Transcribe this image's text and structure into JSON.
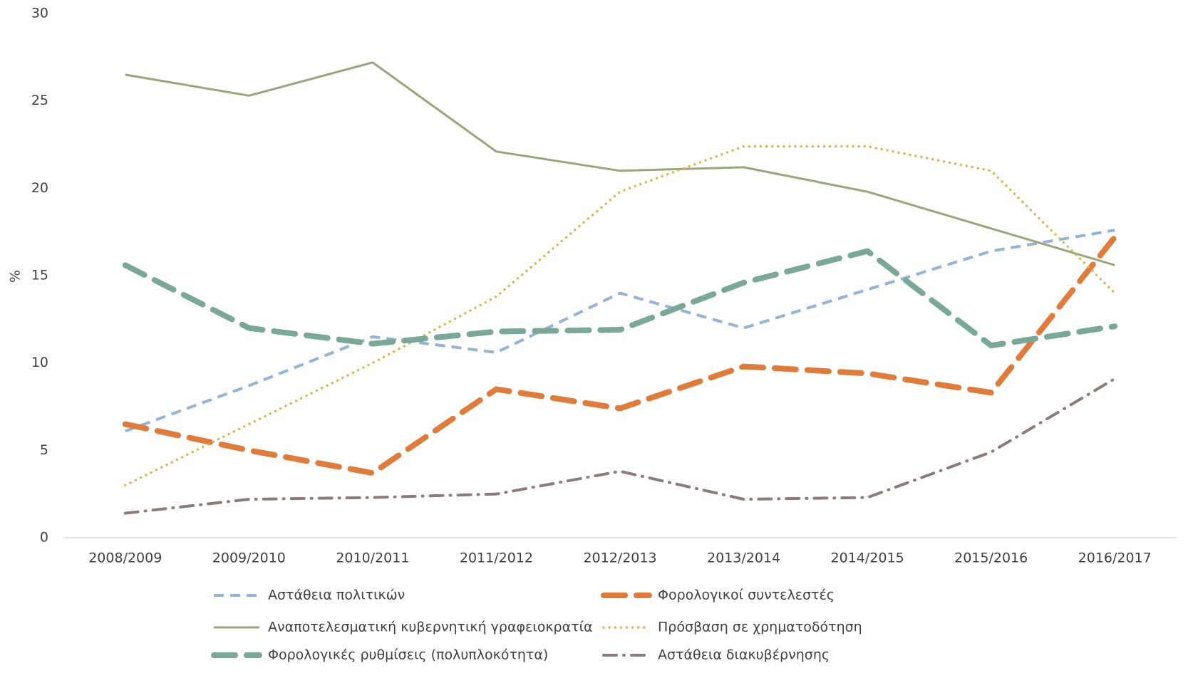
{
  "chart_data": {
    "type": "line",
    "y_label": "%",
    "categories": [
      "2008/2009",
      "2009/2010",
      "2010/2011",
      "2011/2012",
      "2012/2013",
      "2013/2014",
      "2014/2015",
      "2015/2016",
      "2016/2017"
    ],
    "ylim": [
      0,
      30
    ],
    "yticks": [
      0,
      5,
      10,
      15,
      20,
      25,
      30
    ],
    "grid": false,
    "legend": "bottom",
    "series": [
      {
        "name": "Αστάθεια πολιτικών",
        "color": "#95b3d7",
        "line_style": "dashed",
        "values": [
          6.1,
          8.7,
          11.5,
          10.6,
          14.0,
          12.0,
          14.2,
          16.4,
          17.6
        ]
      },
      {
        "name": "Φορολογικοί συντελεστές",
        "color": "#e07b39",
        "line_style": "thick-dashed",
        "values": [
          6.5,
          5.0,
          3.7,
          8.5,
          7.4,
          9.8,
          9.4,
          8.3,
          17.2
        ]
      },
      {
        "name": "Αναποτελεσματική κυβερνητική γραφειοκρατία",
        "color": "#9aa57a",
        "line_style": "solid",
        "values": [
          26.5,
          25.3,
          27.2,
          22.1,
          21.0,
          21.2,
          19.8,
          17.7,
          15.6
        ]
      },
      {
        "name": "Πρόσβαση σε χρηματοδότηση",
        "color": "#d8b65a",
        "line_style": "dotted",
        "values": [
          3.0,
          6.5,
          10.0,
          13.8,
          19.8,
          22.4,
          22.4,
          21.0,
          14.0
        ]
      },
      {
        "name": "Φορολογικές ρυθμίσεις (πολυπλοκότητα)",
        "color": "#7aa898",
        "line_style": "thick-dashed",
        "values": [
          15.6,
          12.0,
          11.1,
          11.8,
          11.9,
          14.6,
          16.4,
          11.0,
          12.1
        ]
      },
      {
        "name": "Αστάθεια διακυβέρνησης",
        "color": "#8c7b7b",
        "line_style": "dash-dot",
        "values": [
          1.4,
          2.2,
          2.3,
          2.5,
          3.8,
          2.2,
          2.3,
          4.9,
          9.1
        ]
      }
    ]
  }
}
